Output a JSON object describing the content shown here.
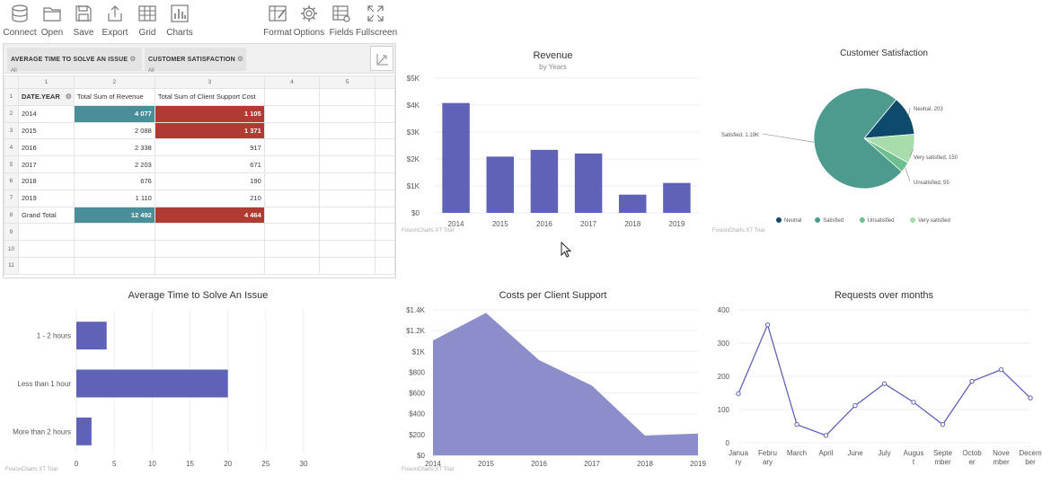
{
  "toolbar": {
    "left": [
      {
        "label": "Connect",
        "icon": "database-icon"
      },
      {
        "label": "Open",
        "icon": "folder-icon"
      },
      {
        "label": "Save",
        "icon": "floppy-disk-icon"
      },
      {
        "label": "Export",
        "icon": "export-icon"
      },
      {
        "label": "Grid",
        "icon": "grid-icon"
      },
      {
        "label": "Charts",
        "icon": "bar-chart-icon"
      }
    ],
    "right": [
      {
        "label": "Format",
        "icon": "format-icon"
      },
      {
        "label": "Options",
        "icon": "gear-icon"
      },
      {
        "label": "Fields",
        "icon": "fields-icon"
      },
      {
        "label": "Fullscreen",
        "icon": "fullscreen-icon"
      }
    ]
  },
  "pivot": {
    "filters": [
      {
        "name": "AVERAGE TIME TO SOLVE AN ISSUE",
        "value": "All"
      },
      {
        "name": "CUSTOMER SATISFACTION",
        "value": "All"
      }
    ],
    "column_numbers": [
      "1",
      "2",
      "3",
      "4",
      "5",
      ""
    ],
    "row_numbers": [
      "1",
      "2",
      "3",
      "4",
      "5",
      "6",
      "7",
      "8",
      "9",
      "10",
      "11"
    ],
    "header": {
      "date": "DATE.YEAR",
      "revenue": "Total Sum of Revenue",
      "cost": "Total Sum of Client Support Cost"
    },
    "rows": [
      {
        "year": "2014",
        "revenue": "4 077",
        "cost": "1 105"
      },
      {
        "year": "2015",
        "revenue": "2 088",
        "cost": "1 371"
      },
      {
        "year": "2016",
        "revenue": "2 338",
        "cost": "917"
      },
      {
        "year": "2017",
        "revenue": "2 203",
        "cost": "671"
      },
      {
        "year": "2018",
        "revenue": "676",
        "cost": "190"
      },
      {
        "year": "2019",
        "revenue": "1 110",
        "cost": "210"
      }
    ],
    "grand_total": {
      "label": "Grand Total",
      "revenue": "12 492",
      "cost": "4 464"
    },
    "colors": {
      "teal": "#4a8e99",
      "red": "#b03b32"
    }
  },
  "watermark": "FusionCharts XT Trial",
  "chart_data": [
    {
      "type": "bar",
      "title": "Revenue",
      "subtitle": "by Years",
      "categories": [
        "2014",
        "2015",
        "2016",
        "2017",
        "2018",
        "2019"
      ],
      "values": [
        4077,
        2088,
        2338,
        2203,
        676,
        1110
      ],
      "ylim": [
        0,
        5000
      ],
      "yticks": [
        "$0",
        "$1K",
        "$2K",
        "$3K",
        "$4K",
        "$5K"
      ],
      "color": "#5f62b7"
    },
    {
      "type": "pie",
      "title": "Customer Satisfaction",
      "slices": [
        {
          "name": "Neutral",
          "value": 203,
          "label": "Neutral, 203",
          "color": "#0e4a6b"
        },
        {
          "name": "Very satisfied",
          "value": 150,
          "label": "Very satisfied, 150",
          "color": "#a8dcaa"
        },
        {
          "name": "Unsatisfied",
          "value": 55,
          "label": "Unsatisfied, 55",
          "color": "#6cc08e"
        },
        {
          "name": "Satisfied",
          "value": 1190,
          "label": "Satisfied, 1.19K",
          "color": "#4d9b8e"
        }
      ],
      "legend": [
        "Neutral",
        "Satisfied",
        "Unsatisfied",
        "Very satisfied"
      ],
      "legend_placement": "bottom"
    },
    {
      "type": "bar",
      "orientation": "horizontal",
      "title": "Average Time to Solve An Issue",
      "categories": [
        "1 - 2 hours",
        "Less than 1 hour",
        "More than 2 hours"
      ],
      "values": [
        4,
        20,
        2
      ],
      "xlim": [
        0,
        30
      ],
      "xticks": [
        "0",
        "5",
        "10",
        "15",
        "20",
        "25",
        "30"
      ],
      "color": "#5f62b7"
    },
    {
      "type": "area",
      "title": "Costs per Client Support",
      "x": [
        "2014",
        "2015",
        "2016",
        "2017",
        "2018",
        "2019"
      ],
      "values": [
        1105,
        1371,
        917,
        671,
        190,
        210
      ],
      "ylim": [
        0,
        1400
      ],
      "yticks": [
        "$0",
        "$200",
        "$400",
        "$600",
        "$800",
        "$1K",
        "$1.2K",
        "$1.4K"
      ],
      "color": "#8b8ecb"
    },
    {
      "type": "line",
      "title": "Requests over months",
      "x": [
        "January",
        "February",
        "March",
        "April",
        "June",
        "July",
        "August",
        "September",
        "October",
        "November",
        "December"
      ],
      "x_tick_lines": [
        [
          "Janua",
          "ry"
        ],
        [
          "Febru",
          "ary"
        ],
        [
          "March"
        ],
        [
          "April"
        ],
        [
          "June"
        ],
        [
          "July"
        ],
        [
          "Augus",
          "t"
        ],
        [
          "Septe",
          "mber"
        ],
        [
          "Octob",
          "er"
        ],
        [
          "Nove",
          "mber"
        ],
        [
          "Decem",
          "ber"
        ]
      ],
      "values": [
        148,
        355,
        55,
        22,
        112,
        178,
        122,
        55,
        185,
        220,
        135
      ],
      "ylim": [
        0,
        400
      ],
      "yticks": [
        "0",
        "100",
        "200",
        "300",
        "400"
      ],
      "color": "#5f62b7"
    }
  ]
}
